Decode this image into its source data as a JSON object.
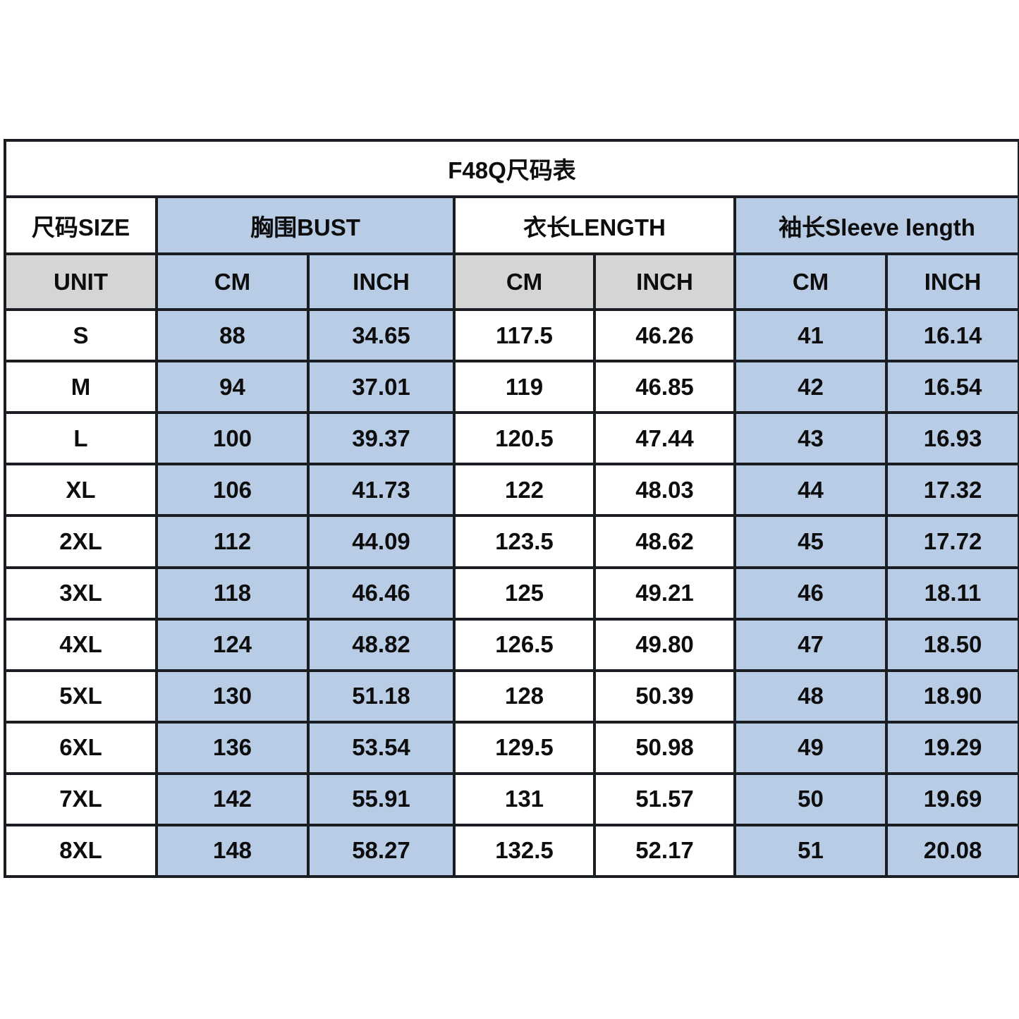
{
  "colors": {
    "header_blue": "#b9cce6",
    "header_gray": "#d5d5d5",
    "cell_white": "#ffffff",
    "border_black": "#1a1d22",
    "text_black": "#0d0d0d"
  },
  "table": {
    "title": "F48Q尺码表",
    "column_groups": [
      {
        "label": "尺码SIZE"
      },
      {
        "label": "胸围BUST"
      },
      {
        "label": "衣长LENGTH"
      },
      {
        "label": "袖长Sleeve length"
      }
    ],
    "unit_row": {
      "label": "UNIT",
      "units": [
        "CM",
        "INCH",
        "CM",
        "INCH",
        "CM",
        "INCH"
      ]
    },
    "rows": [
      {
        "size": "S",
        "bust_cm": "88",
        "bust_inch": "34.65",
        "length_cm": "117.5",
        "length_inch": "46.26",
        "sleeve_cm": "41",
        "sleeve_inch": "16.14"
      },
      {
        "size": "M",
        "bust_cm": "94",
        "bust_inch": "37.01",
        "length_cm": "119",
        "length_inch": "46.85",
        "sleeve_cm": "42",
        "sleeve_inch": "16.54"
      },
      {
        "size": "L",
        "bust_cm": "100",
        "bust_inch": "39.37",
        "length_cm": "120.5",
        "length_inch": "47.44",
        "sleeve_cm": "43",
        "sleeve_inch": "16.93"
      },
      {
        "size": "XL",
        "bust_cm": "106",
        "bust_inch": "41.73",
        "length_cm": "122",
        "length_inch": "48.03",
        "sleeve_cm": "44",
        "sleeve_inch": "17.32"
      },
      {
        "size": "2XL",
        "bust_cm": "112",
        "bust_inch": "44.09",
        "length_cm": "123.5",
        "length_inch": "48.62",
        "sleeve_cm": "45",
        "sleeve_inch": "17.72"
      },
      {
        "size": "3XL",
        "bust_cm": "118",
        "bust_inch": "46.46",
        "length_cm": "125",
        "length_inch": "49.21",
        "sleeve_cm": "46",
        "sleeve_inch": "18.11"
      },
      {
        "size": "4XL",
        "bust_cm": "124",
        "bust_inch": "48.82",
        "length_cm": "126.5",
        "length_inch": "49.80",
        "sleeve_cm": "47",
        "sleeve_inch": "18.50"
      },
      {
        "size": "5XL",
        "bust_cm": "130",
        "bust_inch": "51.18",
        "length_cm": "128",
        "length_inch": "50.39",
        "sleeve_cm": "48",
        "sleeve_inch": "18.90"
      },
      {
        "size": "6XL",
        "bust_cm": "136",
        "bust_inch": "53.54",
        "length_cm": "129.5",
        "length_inch": "50.98",
        "sleeve_cm": "49",
        "sleeve_inch": "19.29"
      },
      {
        "size": "7XL",
        "bust_cm": "142",
        "bust_inch": "55.91",
        "length_cm": "131",
        "length_inch": "51.57",
        "sleeve_cm": "50",
        "sleeve_inch": "19.69"
      },
      {
        "size": "8XL",
        "bust_cm": "148",
        "bust_inch": "58.27",
        "length_cm": "132.5",
        "length_inch": "52.17",
        "sleeve_cm": "51",
        "sleeve_inch": "20.08"
      }
    ]
  }
}
